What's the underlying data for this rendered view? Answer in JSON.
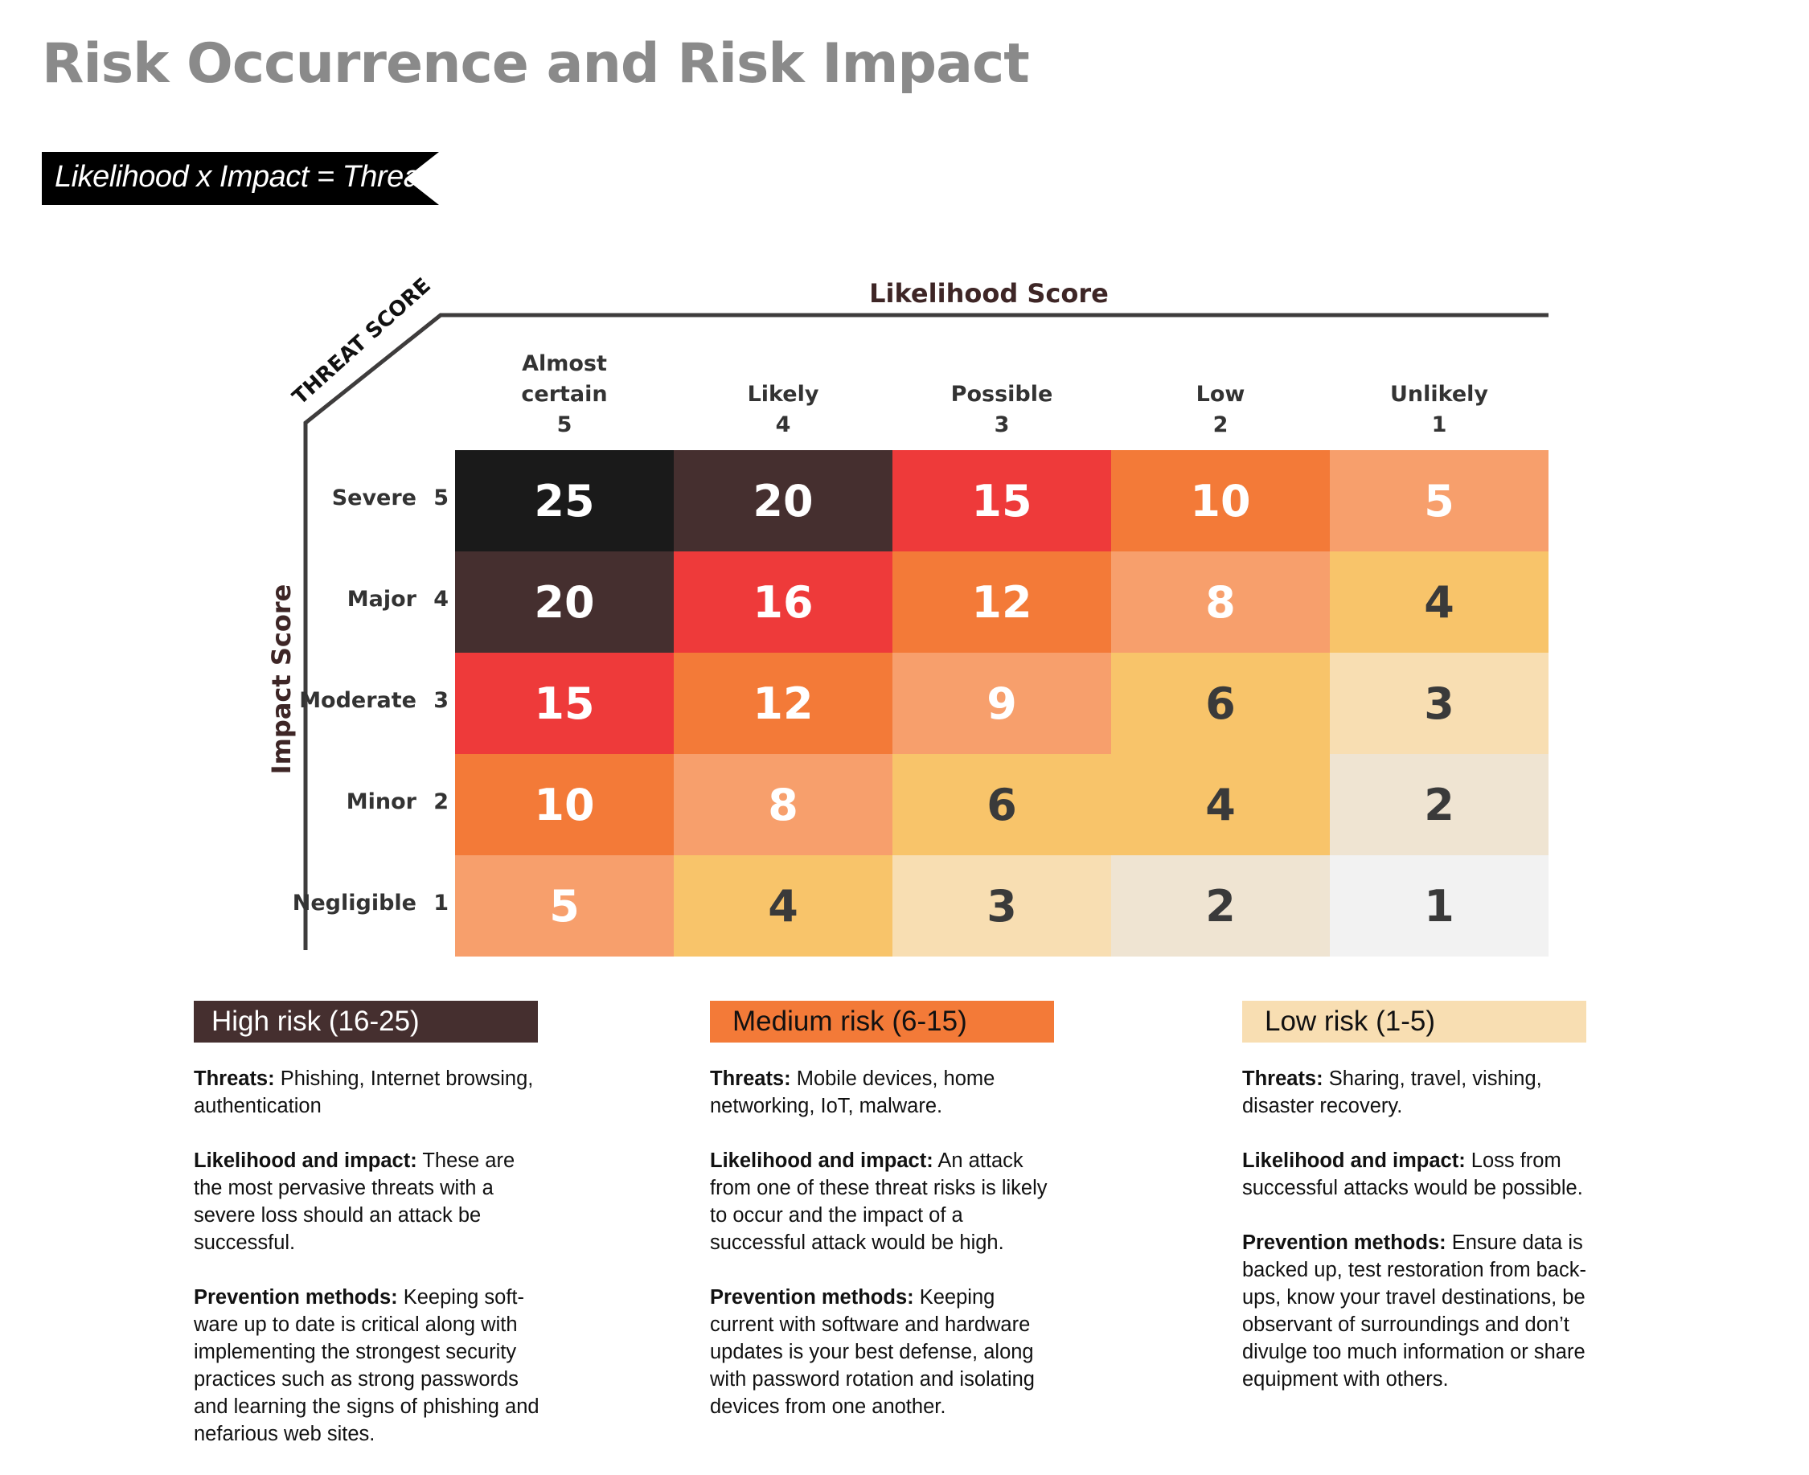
{
  "title": "Risk Occurrence and Risk Impact",
  "formula": "Likelihood x Impact = Threat",
  "colors": {
    "title": "#8a8a8a",
    "axis": "#3e3c3c",
    "high_bar": "#452f2f",
    "medium_bar": "#f37a38",
    "low_bar": "#f8deb2",
    "score_colors": {
      "1": "#f2f2f2",
      "2": "#efe4d2",
      "3": "#f8deb2",
      "4": "#f8c46a",
      "5": "#f79f6c",
      "6": "#f8c46a",
      "8": "#f79f6c",
      "9": "#f79f6c",
      "10": "#f37a38",
      "12": "#f37a38",
      "15": "#ee3a3a",
      "16": "#ee3a3a",
      "20": "#452f2f",
      "25": "#1a1a1a"
    }
  },
  "chart_data": {
    "type": "heatmap",
    "title": "Risk Occurrence and Risk Impact",
    "xlabel": "Likelihood Score",
    "ylabel": "Impact Score",
    "corner_label": "THREAT SCORE",
    "columns": [
      {
        "name": "Almost certain",
        "score": "5"
      },
      {
        "name": "Likely",
        "score": "4"
      },
      {
        "name": "Possible",
        "score": "3"
      },
      {
        "name": "Low",
        "score": "2"
      },
      {
        "name": "Unlikely",
        "score": "1"
      }
    ],
    "rows": [
      {
        "name": "Severe",
        "score": "5"
      },
      {
        "name": "Major",
        "score": "4"
      },
      {
        "name": "Moderate",
        "score": "3"
      },
      {
        "name": "Minor",
        "score": "2"
      },
      {
        "name": "Negligible",
        "score": "1"
      }
    ],
    "values": [
      [
        25,
        20,
        15,
        10,
        5
      ],
      [
        20,
        16,
        12,
        8,
        4
      ],
      [
        15,
        12,
        9,
        6,
        3
      ],
      [
        10,
        8,
        6,
        4,
        2
      ],
      [
        5,
        4,
        3,
        2,
        1
      ]
    ]
  },
  "legend": {
    "high": {
      "label": "High risk (16-25)",
      "threats_label": "Threats:",
      "threats": "Phishing, Internet browsing, authentication",
      "likelihood_label": "Likelihood and impact:",
      "likelihood": "These are the most pervasive threats with a severe loss should an attack be successful.",
      "prevention_label": "Prevention methods:",
      "prevention": "Keeping soft-ware up to date is critical along with implementing the strongest security practices such as strong passwords and learning the signs of phishing and nefarious web sites."
    },
    "medium": {
      "label": "Medium risk (6-15)",
      "threats_label": "Threats:",
      "threats": "Mobile devices, home networking, IoT, malware.",
      "likelihood_label": "Likelihood and impact:",
      "likelihood": "An attack from one of these threat risks is likely to occur and the impact of a successful attack would be high.",
      "prevention_label": "Prevention methods:",
      "prevention": "Keeping current with software and hardware updates is your best defense, along with password rotation and isolating devices from one another."
    },
    "low": {
      "label": "Low risk (1-5)",
      "threats_label": "Threats:",
      "threats": "Sharing, travel, vishing, disaster recovery.",
      "likelihood_label": "Likelihood and impact:",
      "likelihood": "Loss from successful attacks would be possible.",
      "prevention_label": "Prevention methods:",
      "prevention": "Ensure data is backed up, test restoration from back-ups, know your travel destinations, be observant of surroundings and don’t divulge too much information or share equipment with others."
    }
  }
}
